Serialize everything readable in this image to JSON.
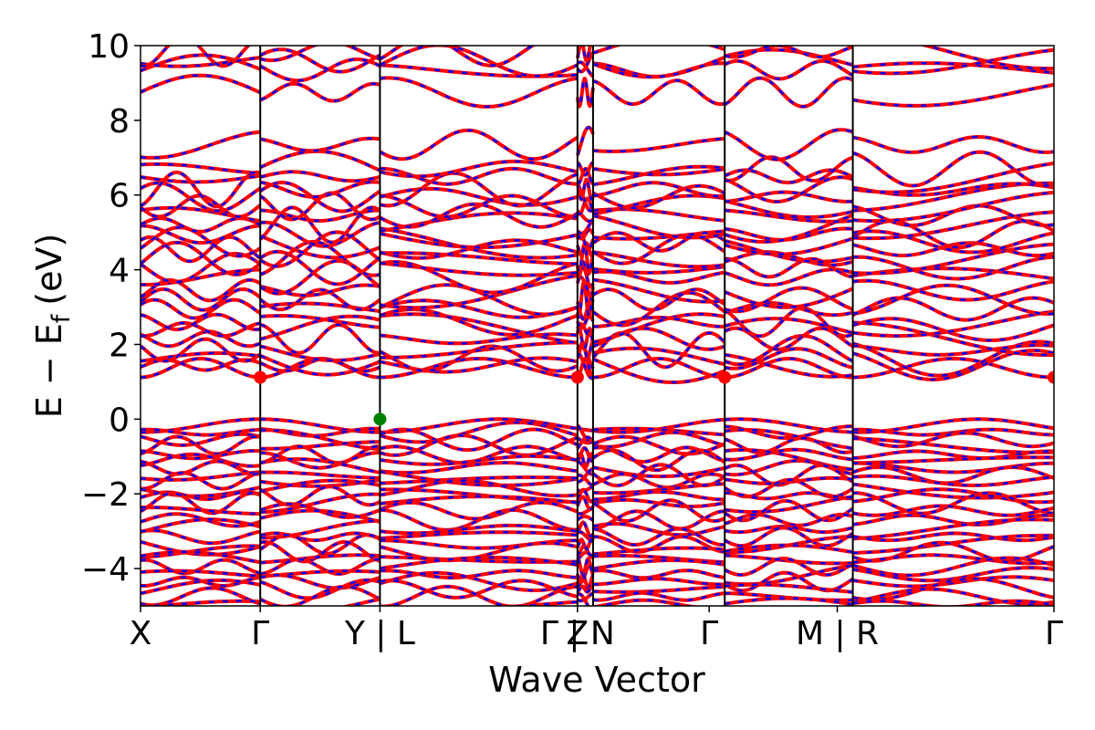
{
  "chart_data": {
    "type": "line",
    "title": "",
    "xlabel": "Wave Vector",
    "ylabel": "E − E",
    "ylabel_subscript": "f",
    "ylabel_unit": "(eV)",
    "ylim": [
      -5,
      10
    ],
    "y_ticks": [
      {
        "value": 10,
        "label": "10"
      },
      {
        "value": 8,
        "label": "8"
      },
      {
        "value": 6,
        "label": "6"
      },
      {
        "value": 4,
        "label": "4"
      },
      {
        "value": 2,
        "label": "2"
      },
      {
        "value": 0,
        "label": "0"
      },
      {
        "value": -2,
        "label": "−2"
      },
      {
        "value": -4,
        "label": "−4"
      }
    ],
    "x_range": [
      0,
      7.63
    ],
    "k_points": [
      {
        "x": 0.0,
        "label": "X"
      },
      {
        "x": 1.0,
        "label": "Γ"
      },
      {
        "x": 2.0,
        "label": "Y | L"
      },
      {
        "x": 3.65,
        "label": "Z"
      },
      {
        "x": 3.65,
        "label": "Γ | N"
      },
      {
        "x": 4.75,
        "label": "Γ"
      },
      {
        "x": 5.82,
        "label": "M | R"
      },
      {
        "x": 7.63,
        "label": "Γ"
      }
    ],
    "segment_boundaries": [
      0.0,
      1.0,
      2.0,
      3.65,
      3.78,
      4.88,
      5.95,
      7.63
    ],
    "series": [
      {
        "style": "solid",
        "color": "#ff0000"
      },
      {
        "style": "dashed",
        "color": "#0000ff"
      }
    ],
    "markers": [
      {
        "x": 1.0,
        "y": 1.12,
        "color": "#ff0000"
      },
      {
        "x": 3.65,
        "y": 1.12,
        "color": "#ff0000"
      },
      {
        "x": 4.88,
        "y": 1.12,
        "color": "#ff0000"
      },
      {
        "x": 7.63,
        "y": 1.12,
        "color": "#ff0000"
      },
      {
        "x": 2.0,
        "y": 0.0,
        "color": "#008000"
      }
    ],
    "band_energies": {
      "conduction": [
        1.12,
        1.45,
        1.62,
        1.85,
        2.15,
        2.4,
        2.6,
        2.95,
        3.2,
        3.45,
        3.8,
        4.05,
        4.3,
        4.55,
        4.75,
        4.95,
        5.2,
        5.45,
        5.7,
        5.95,
        6.15,
        6.5,
        6.7,
        7.35,
        8.75,
        9.35,
        9.6,
        9.85
      ],
      "valence": [
        0.0,
        -0.35,
        -0.55,
        -0.7,
        -0.95,
        -1.1,
        -1.3,
        -1.5,
        -1.65,
        -1.85,
        -2.05,
        -2.25,
        -2.45,
        -2.7,
        -2.95,
        -3.15,
        -3.35,
        -3.55,
        -3.75,
        -3.95,
        -4.15,
        -4.35,
        -4.55,
        -4.75,
        -4.95
      ]
    }
  }
}
